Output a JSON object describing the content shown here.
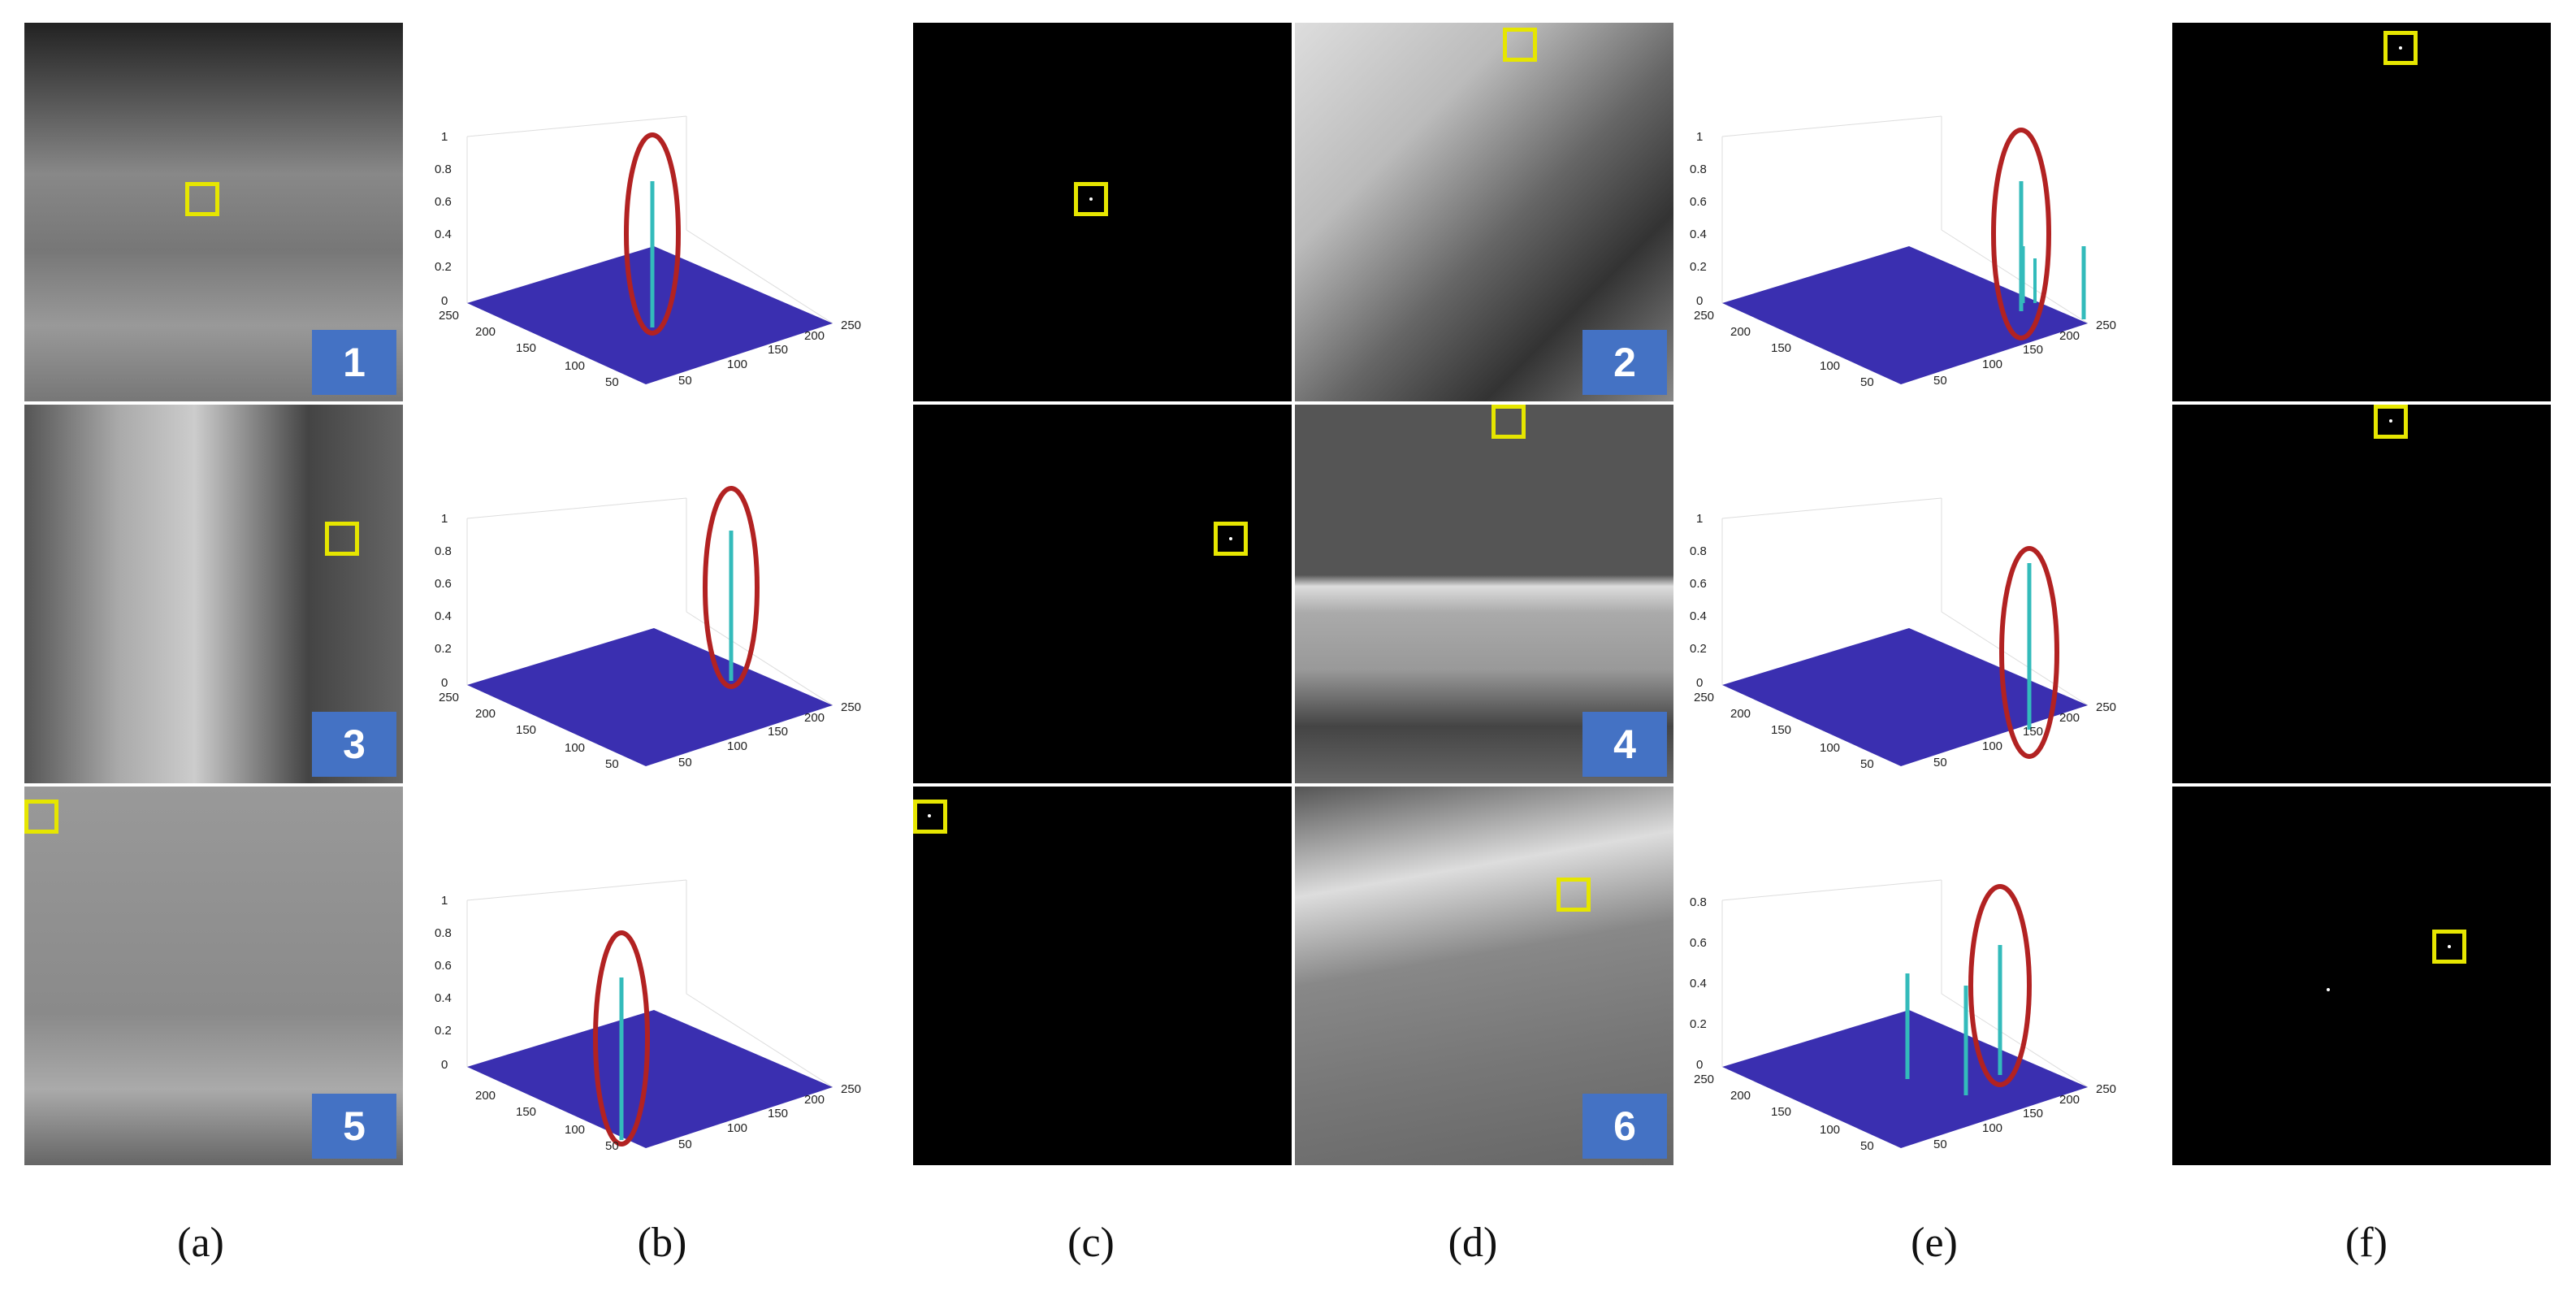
{
  "figure": {
    "columns": [
      {
        "key": "a",
        "label": "(a)"
      },
      {
        "key": "b",
        "label": "(b)"
      },
      {
        "key": "c",
        "label": "(c)"
      },
      {
        "key": "d",
        "label": "(d)"
      },
      {
        "key": "e",
        "label": "(e)"
      },
      {
        "key": "f",
        "label": "(f)"
      }
    ],
    "sample_badges": [
      "1",
      "2",
      "3",
      "4",
      "5",
      "6"
    ],
    "colors": {
      "badge": "#4472c4",
      "target_box": "#e6e600",
      "highlight_ellipse": "#b22222",
      "surface": "#3a2fb0"
    },
    "plot_axes": {
      "z_ticks_1": [
        "0",
        "0.2",
        "0.4",
        "0.6",
        "0.8",
        "1"
      ],
      "z_ticks_0_8": [
        "0",
        "0.2",
        "0.4",
        "0.6",
        "0.8"
      ],
      "x_ticks": [
        "50",
        "100",
        "150",
        "200",
        "250"
      ],
      "y_ticks": [
        "50",
        "100",
        "150",
        "200",
        "250"
      ]
    }
  }
}
